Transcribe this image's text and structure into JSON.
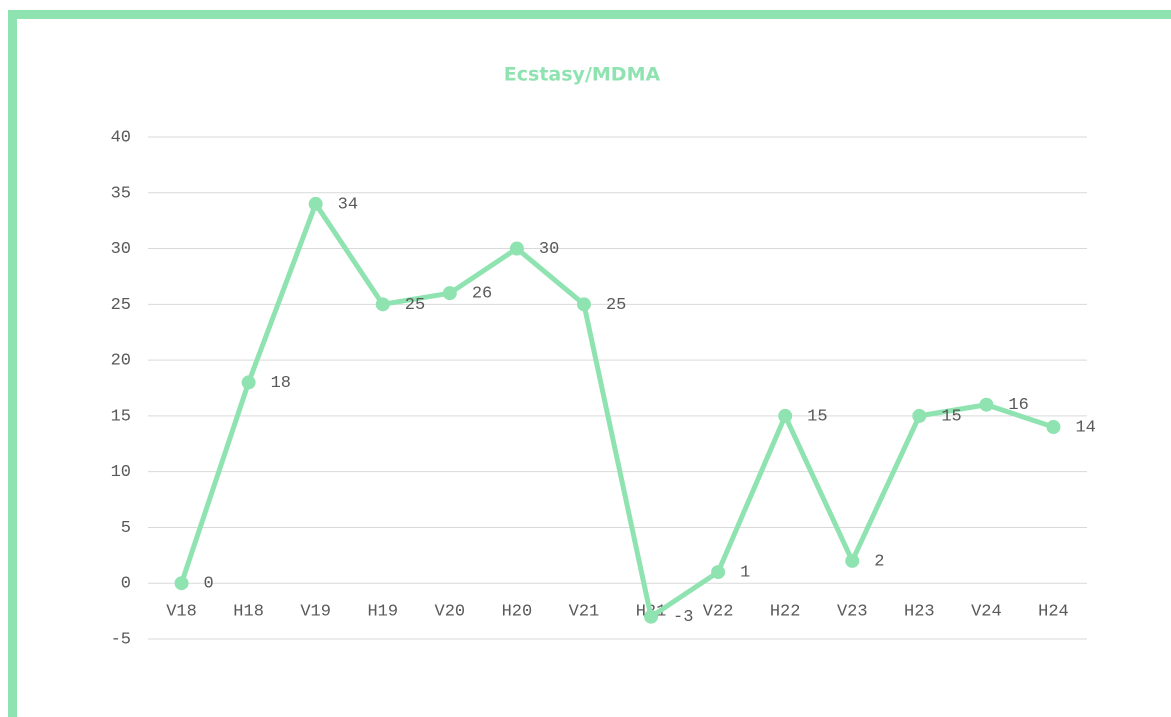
{
  "chart_data": {
    "type": "line",
    "title": "Ecstasy/MDMA",
    "categories": [
      "V18",
      "H18",
      "V19",
      "H19",
      "V20",
      "H20",
      "V21",
      "H21",
      "V22",
      "H22",
      "V23",
      "H23",
      "V24",
      "H24"
    ],
    "series": [
      {
        "name": "Ecstasy/MDMA",
        "color": "#8fe3b0",
        "values": [
          0,
          18,
          34,
          25,
          26,
          30,
          25,
          -3,
          1,
          15,
          2,
          15,
          16,
          14
        ]
      }
    ],
    "ylim": [
      -5,
      40
    ],
    "yticks": [
      -5,
      0,
      5,
      10,
      15,
      20,
      25,
      30,
      35,
      40
    ],
    "grid": true
  }
}
